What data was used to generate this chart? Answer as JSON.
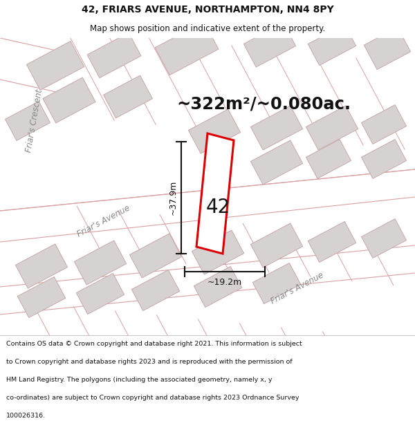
{
  "title_line1": "42, FRIARS AVENUE, NORTHAMPTON, NN4 8PY",
  "title_line2": "Map shows position and indicative extent of the property.",
  "area_text": "~322m²/~0.080ac.",
  "dim_width": "~19.2m",
  "dim_height": "~37.9m",
  "property_label": "42",
  "footer_lines": [
    "Contains OS data © Crown copyright and database right 2021. This information is subject",
    "to Crown copyright and database rights 2023 and is reproduced with the permission of",
    "HM Land Registry. The polygons (including the associated geometry, namely x, y",
    "co-ordinates) are subject to Crown copyright and database rights 2023 Ordnance Survey",
    "100026316."
  ],
  "map_bg": "#f2eeee",
  "road_color": "#ffffff",
  "building_color": "#d6d2d2",
  "building_edge": "#c8a8a8",
  "red_line_color": "#dd0000",
  "pink_line_color": "#daa0a0",
  "property_fill": "#ffffff",
  "dim_line_color": "#111111",
  "text_color": "#111111",
  "road_label_color": "#888888",
  "area_text_color": "#111111"
}
